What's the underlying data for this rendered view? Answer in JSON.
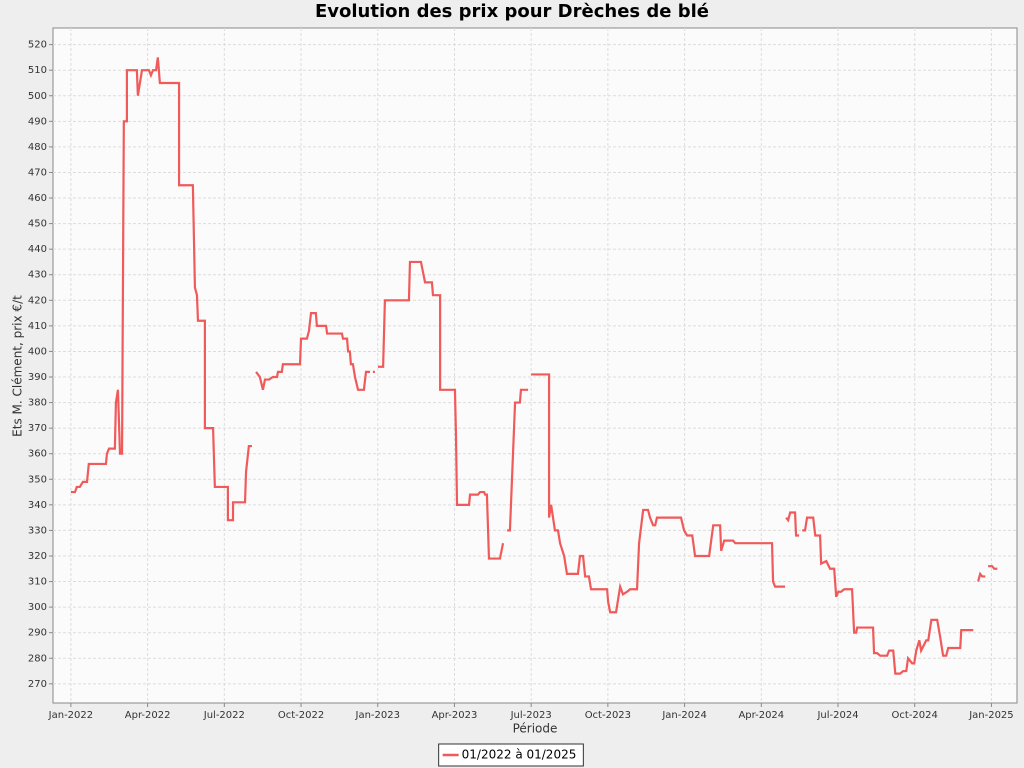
{
  "chart_data": {
    "type": "line",
    "title": "Evolution des prix pour Drèches de blé",
    "x_label": "Période",
    "y_label": "Ets M. Clément, prix €/t",
    "grid": true,
    "legend": "bottom",
    "xlim": [
      -0.7,
      37.0
    ],
    "ylim": [
      262.5,
      526.5
    ],
    "xticks": [
      {
        "value": 0,
        "label": "Jan-2022"
      },
      {
        "value": 3,
        "label": "Apr-2022"
      },
      {
        "value": 6,
        "label": "Jul-2022"
      },
      {
        "value": 9,
        "label": "Oct-2022"
      },
      {
        "value": 12,
        "label": "Jan-2023"
      },
      {
        "value": 15,
        "label": "Apr-2023"
      },
      {
        "value": 18,
        "label": "Jul-2023"
      },
      {
        "value": 21,
        "label": "Oct-2023"
      },
      {
        "value": 24,
        "label": "Jan-2024"
      },
      {
        "value": 27,
        "label": "Apr-2024"
      },
      {
        "value": 30,
        "label": "Jul-2024"
      },
      {
        "value": 33,
        "label": "Oct-2024"
      },
      {
        "value": 36,
        "label": "Jan-2025"
      }
    ],
    "yticks": [
      270,
      280,
      290,
      300,
      310,
      320,
      330,
      340,
      350,
      360,
      370,
      380,
      390,
      400,
      410,
      420,
      430,
      440,
      450,
      460,
      470,
      480,
      490,
      500,
      510,
      520
    ],
    "x": [
      0,
      0.16,
      0.23,
      0.35,
      0.47,
      0.63,
      0.7,
      1.37,
      1.41,
      1.49,
      1.72,
      1.76,
      1.84,
      1.92,
      2.0,
      2.07,
      2.19,
      2.19,
      2.58,
      2.62,
      2.78,
      3.05,
      3.13,
      3.21,
      3.33,
      3.4,
      3.48,
      4.23,
      4.23,
      4.23,
      4.77,
      4.85,
      4.93,
      4.97,
      5.24,
      5.24,
      5.56,
      5.59,
      5.63,
      6.14,
      6.14,
      6.34,
      6.34,
      6.81,
      6.85,
      6.96,
      7.08,
      null,
      7.24,
      7.39,
      7.51,
      7.59,
      7.75,
      7.9,
      8.06,
      8.1,
      8.25,
      8.29,
      8.96,
      9.0,
      9.23,
      9.31,
      9.39,
      9.58,
      9.62,
      9.98,
      10.02,
      10.6,
      10.64,
      10.8,
      10.84,
      10.91,
      10.95,
      11.03,
      11.11,
      11.23,
      11.46,
      11.54,
      11.7,
      null,
      11.81,
      11.89,
      null,
      12.01,
      12.21,
      12.28,
      13.22,
      13.26,
      13.69,
      13.85,
      14.12,
      14.16,
      14.44,
      14.44,
      15.02,
      15.06,
      15.1,
      15.57,
      15.61,
      15.92,
      16.0,
      16.16,
      16.2,
      16.27,
      16.35,
      16.78,
      16.9,
      null,
      17.06,
      17.17,
      17.29,
      17.37,
      17.56,
      17.6,
      17.88,
      null,
      18.0,
      18.7,
      18.7,
      18.78,
      18.93,
      19.05,
      19.13,
      19.29,
      19.4,
      19.83,
      19.91,
      20.03,
      20.11,
      20.26,
      20.34,
      20.97,
      21.01,
      21.09,
      21.32,
      21.4,
      21.48,
      21.59,
      21.75,
      21.87,
      22.14,
      22.22,
      22.38,
      22.57,
      22.65,
      22.77,
      22.85,
      22.92,
      23.71,
      23.79,
      23.86,
      23.98,
      24.1,
      24.3,
      24.41,
      24.96,
      25.12,
      25.39,
      25.43,
      25.55,
      25.9,
      25.98,
      27.42,
      27.46,
      27.54,
      27.93,
      null,
      27.97,
      28.05,
      28.13,
      28.32,
      28.36,
      28.48,
      null,
      28.6,
      28.71,
      28.79,
      29.03,
      29.11,
      29.3,
      29.34,
      29.54,
      29.69,
      29.85,
      29.93,
      30.01,
      30.12,
      30.24,
      30.55,
      30.63,
      30.71,
      30.75,
      31.37,
      31.41,
      31.53,
      31.65,
      31.92,
      32.0,
      32.16,
      32.24,
      32.43,
      32.55,
      32.67,
      32.74,
      32.9,
      32.98,
      33.06,
      33.18,
      33.25,
      33.45,
      33.53,
      33.65,
      33.88,
      34.0,
      34.11,
      34.23,
      34.31,
      34.78,
      34.82,
      35.29,
      null,
      35.48,
      35.56,
      35.64,
      35.76,
      null,
      35.87,
      36.03,
      36.11,
      36.23
    ],
    "series": [
      {
        "name": "01/2022 à 01/2025",
        "color": "#f05a5a",
        "values": [
          345,
          345,
          347,
          347,
          349,
          349,
          356,
          356,
          360,
          362,
          362,
          380,
          385,
          360,
          360,
          490,
          490,
          510,
          510,
          500,
          510,
          510,
          508,
          510,
          510,
          515,
          505,
          505,
          485,
          465,
          465,
          425,
          422,
          412,
          412,
          370,
          370,
          360,
          347,
          347,
          334,
          334,
          341,
          341,
          353,
          363,
          363,
          null,
          392,
          390,
          385,
          389,
          389,
          390,
          390,
          392,
          392,
          395,
          395,
          405,
          405,
          408,
          415,
          415,
          410,
          410,
          407,
          407,
          405,
          405,
          400,
          400,
          395,
          395,
          390,
          385,
          385,
          392,
          392,
          null,
          392,
          392,
          null,
          394,
          394,
          420,
          420,
          435,
          435,
          427,
          427,
          422,
          422,
          385,
          385,
          367,
          340,
          340,
          344,
          344,
          345,
          345,
          344,
          344,
          319,
          319,
          325,
          null,
          330,
          330,
          360,
          380,
          380,
          385,
          385,
          null,
          391,
          391,
          335,
          340,
          330,
          330,
          325,
          320,
          313,
          313,
          320,
          320,
          312,
          312,
          307,
          307,
          302,
          298,
          298,
          303,
          308,
          305,
          306,
          307,
          307,
          325,
          338,
          338,
          335,
          332,
          332,
          335,
          335,
          335,
          335,
          330,
          328,
          328,
          320,
          320,
          332,
          332,
          322,
          326,
          326,
          325,
          325,
          310,
          308,
          308,
          null,
          335,
          334,
          337,
          337,
          328,
          328,
          null,
          330,
          330,
          335,
          335,
          328,
          328,
          317,
          318,
          315,
          315,
          304,
          306,
          306,
          307,
          307,
          290,
          290,
          292,
          292,
          282,
          282,
          281,
          281,
          283,
          283,
          274,
          274,
          275,
          275,
          280,
          278,
          278,
          283,
          287,
          283,
          287,
          287,
          295,
          295,
          288,
          281,
          281,
          284,
          284,
          291,
          291,
          null,
          310,
          313,
          312,
          312,
          null,
          316,
          316,
          315,
          315
        ]
      }
    ]
  }
}
